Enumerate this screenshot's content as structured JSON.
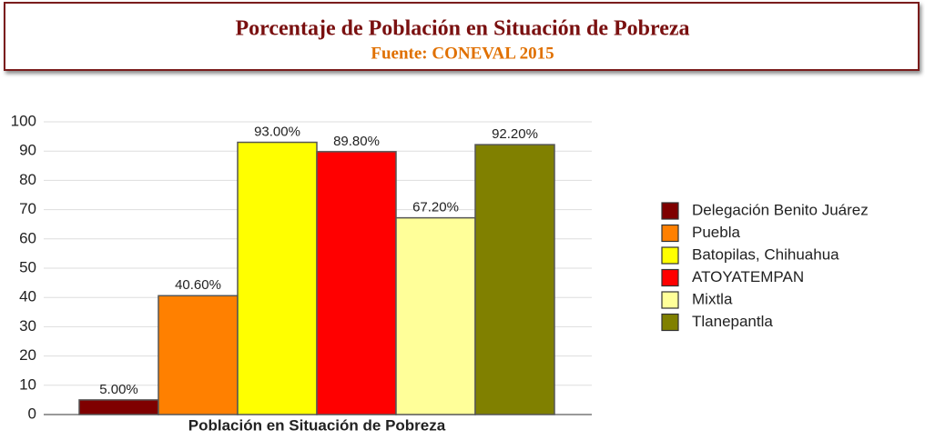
{
  "chart_data": {
    "type": "bar",
    "title": "Porcentaje de Población en Situación de Pobreza",
    "subtitle": "Fuente: CONEVAL 2015",
    "categories": [
      "Población en Situación de Pobreza"
    ],
    "series": [
      {
        "name": "Delegación Benito Juárez",
        "color": "#7f0000",
        "values": [
          5
        ],
        "value_labels": [
          "5.00%"
        ]
      },
      {
        "name": "Puebla",
        "color": "#ff8000",
        "values": [
          40.6
        ],
        "value_labels": [
          "40.60%"
        ]
      },
      {
        "name": "Batopilas, Chihuahua",
        "color": "#ffff00",
        "values": [
          93
        ],
        "value_labels": [
          "93.00%"
        ]
      },
      {
        "name": "ATOYATEMPAN",
        "color": "#ff0000",
        "values": [
          89.8
        ],
        "value_labels": [
          "89.80%"
        ]
      },
      {
        "name": "Mixtla",
        "color": "#ffff99",
        "values": [
          67.2
        ],
        "value_labels": [
          "67.20%"
        ]
      },
      {
        "name": "Tlanepantla",
        "color": "#808000",
        "values": [
          92.2
        ],
        "value_labels": [
          "92.20%"
        ]
      }
    ],
    "ylim": [
      0,
      100
    ],
    "yticks": [
      0,
      10,
      20,
      30,
      40,
      50,
      60,
      70,
      80,
      90,
      100
    ],
    "grid": true,
    "legend": "right"
  }
}
